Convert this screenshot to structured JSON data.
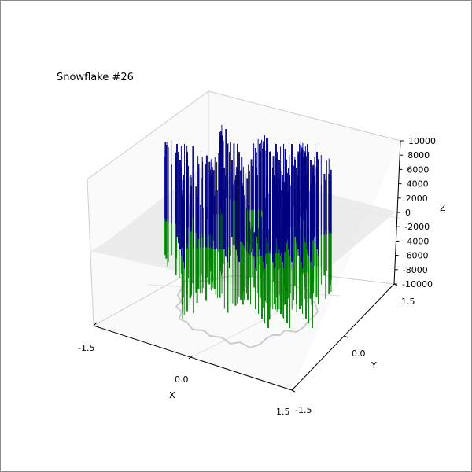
{
  "chart_data": {
    "type": "3d-bar",
    "title": "Snowflake #26",
    "xlabel": "X",
    "ylabel": "Y",
    "zlabel": "Z",
    "x_ticks": [
      "-1.5",
      "0.0",
      "1.5"
    ],
    "y_ticks": [
      "-1.5",
      "0.0",
      "1.5"
    ],
    "z_ticks": [
      "-10000",
      "-8000",
      "-6000",
      "-4000",
      "-2000",
      "0",
      "2000",
      "4000",
      "6000",
      "8000",
      "10000"
    ],
    "xlim": [
      -1.5,
      1.5
    ],
    "ylim": [
      -1.5,
      1.5
    ],
    "zlim": [
      -10000,
      10000
    ],
    "grid": true,
    "colors": {
      "positive_bars": "#000080",
      "negative_bars": "#008000",
      "zero_plane": "#e6e6e6",
      "outline": "#cccccc",
      "axis": "#000000"
    }
  }
}
